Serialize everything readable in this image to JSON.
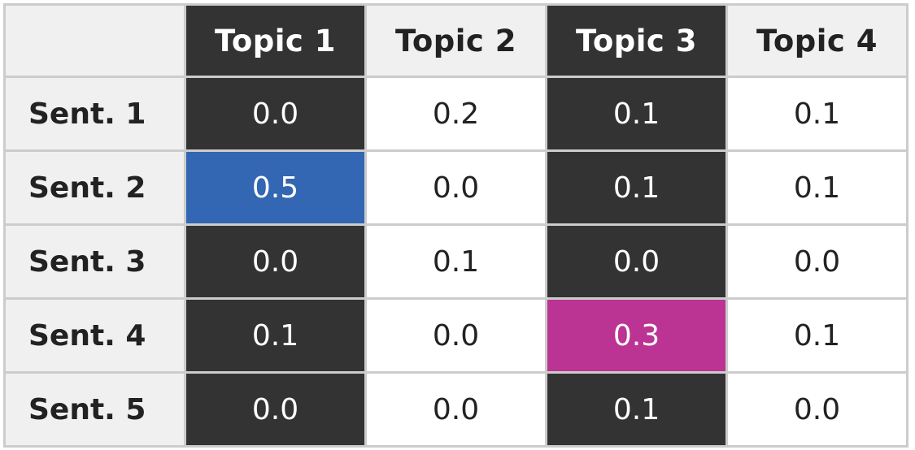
{
  "chart_data": {
    "type": "table",
    "columns": [
      "Topic 1",
      "Topic 2",
      "Topic 3",
      "Topic 4"
    ],
    "rows": [
      {
        "label": "Sent. 1",
        "values": [
          "0.0",
          "0.2",
          "0.1",
          "0.1"
        ]
      },
      {
        "label": "Sent. 2",
        "values": [
          "0.5",
          "0.0",
          "0.1",
          "0.1"
        ]
      },
      {
        "label": "Sent. 3",
        "values": [
          "0.0",
          "0.1",
          "0.0",
          "0.0"
        ]
      },
      {
        "label": "Sent. 4",
        "values": [
          "0.1",
          "0.0",
          "0.3",
          "0.1"
        ]
      },
      {
        "label": "Sent. 5",
        "values": [
          "0.0",
          "0.0",
          "0.1",
          "0.0"
        ]
      }
    ],
    "highlights": [
      {
        "row": 1,
        "col": 0,
        "color": "#3366b3"
      },
      {
        "row": 3,
        "col": 2,
        "color": "#bb3393"
      }
    ]
  },
  "colors": {
    "dark_column_bg": "#333333",
    "dark_column_text": "#ffffff",
    "light_column_bg": "#ffffff",
    "light_header_bg": "#f0f0f0",
    "light_column_text": "#222222",
    "grid_line": "#cccccc"
  }
}
